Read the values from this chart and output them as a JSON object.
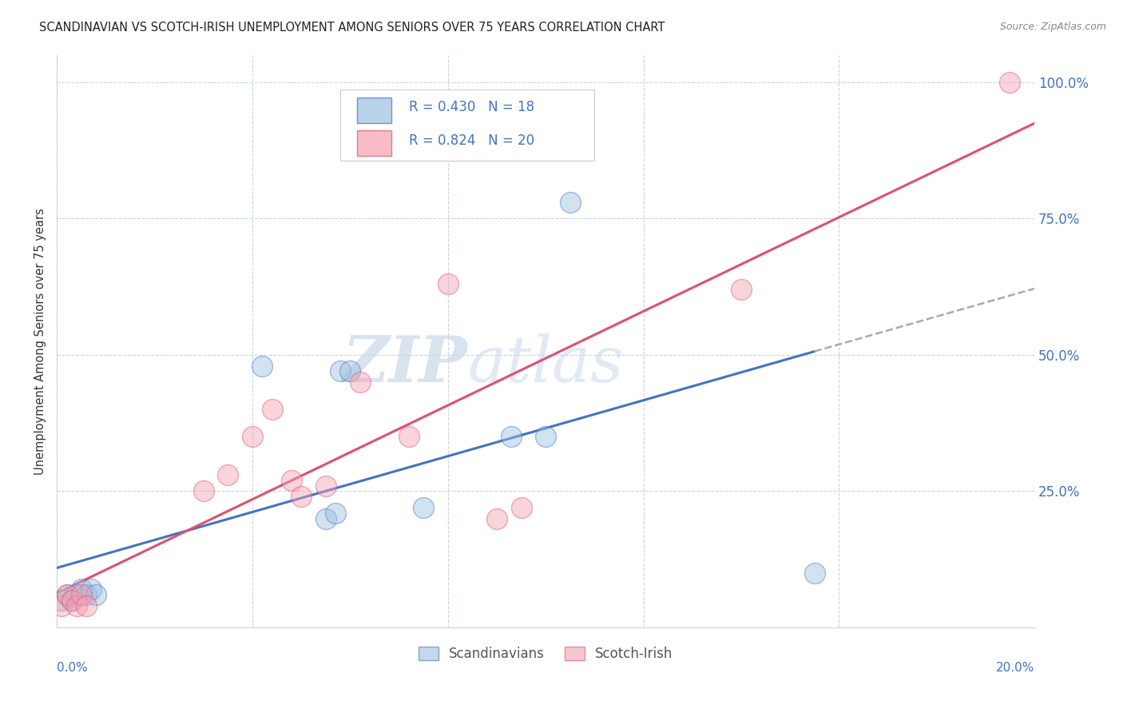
{
  "title": "SCANDINAVIAN VS SCOTCH-IRISH UNEMPLOYMENT AMONG SENIORS OVER 75 YEARS CORRELATION CHART",
  "source": "Source: ZipAtlas.com",
  "ylabel": "Unemployment Among Seniors over 75 years",
  "xlim": [
    0.0,
    0.2
  ],
  "ylim": [
    0.0,
    1.05
  ],
  "scandinavian_color": "#9bbfe0",
  "scotch_irish_color": "#f4a0b0",
  "scandinavian_line_color": "#4472c4",
  "scotch_irish_line_color": "#e05070",
  "dashed_line_color": "#aaaaaa",
  "scandinavian_R": 0.43,
  "scandinavian_N": 18,
  "scotch_irish_R": 0.824,
  "scotch_irish_N": 20,
  "watermark": "ZIPatlas",
  "scandinavian_x": [
    0.001,
    0.002,
    0.003,
    0.004,
    0.005,
    0.006,
    0.007,
    0.008,
    0.042,
    0.055,
    0.057,
    0.058,
    0.06,
    0.075,
    0.093,
    0.1,
    0.105,
    0.155
  ],
  "scandinavian_y": [
    0.05,
    0.06,
    0.05,
    0.06,
    0.07,
    0.06,
    0.07,
    0.06,
    0.48,
    0.2,
    0.21,
    0.47,
    0.47,
    0.22,
    0.35,
    0.35,
    0.78,
    0.1
  ],
  "scotch_irish_x": [
    0.001,
    0.002,
    0.003,
    0.004,
    0.005,
    0.006,
    0.03,
    0.035,
    0.04,
    0.044,
    0.048,
    0.05,
    0.055,
    0.062,
    0.072,
    0.08,
    0.09,
    0.095,
    0.14,
    0.195
  ],
  "scotch_irish_y": [
    0.04,
    0.06,
    0.05,
    0.04,
    0.06,
    0.04,
    0.25,
    0.28,
    0.35,
    0.4,
    0.27,
    0.24,
    0.26,
    0.45,
    0.35,
    0.63,
    0.2,
    0.22,
    0.62,
    1.0
  ],
  "legend_label_scandinavian": "Scandinavians",
  "legend_label_scotch_irish": "Scotch-Irish",
  "y_ticks": [
    0.0,
    0.25,
    0.5,
    0.75,
    1.0
  ],
  "y_tick_labels": [
    "",
    "25.0%",
    "50.0%",
    "75.0%",
    "100.0%"
  ],
  "x_ticks": [
    0.0,
    0.04,
    0.08,
    0.12,
    0.16,
    0.2
  ],
  "grid_color": "#c8d4e8",
  "spine_color": "#c8d4e8"
}
